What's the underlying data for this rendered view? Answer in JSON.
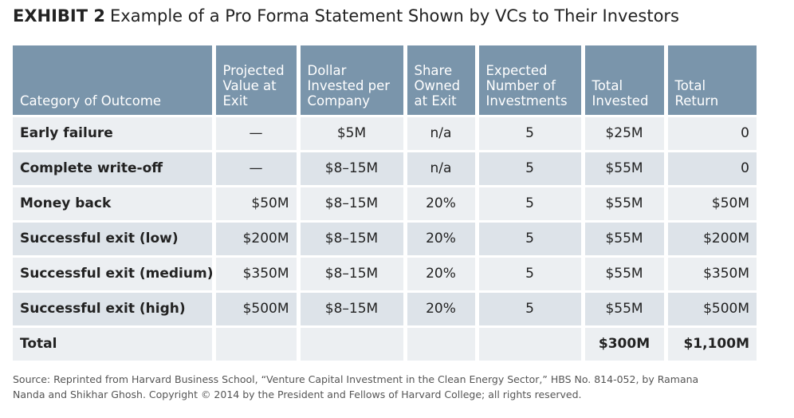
{
  "title": {
    "number": "EXHIBIT 2",
    "text": "Example of a Pro Forma Statement Shown by VCs to Their Investors"
  },
  "table": {
    "headers": [
      "Category of Outcome",
      "Projected Value at Exit",
      "Dollar Invested per Company",
      "Share Owned at Exit",
      "Expected Number of Investments",
      "Total Invested",
      "Total Return"
    ],
    "rows": [
      [
        "Early failure",
        "—",
        "$5M",
        "n/a",
        "5",
        "$25M",
        "0"
      ],
      [
        "Complete write-off",
        "—",
        "$8–15M",
        "n/a",
        "5",
        "$55M",
        "0"
      ],
      [
        "Money back",
        "$50M",
        "$8–15M",
        "20%",
        "5",
        "$55M",
        "$50M"
      ],
      [
        "Successful exit (low)",
        "$200M",
        "$8–15M",
        "20%",
        "5",
        "$55M",
        "$200M"
      ],
      [
        "Successful exit (medium)",
        "$350M",
        "$8–15M",
        "20%",
        "5",
        "$55M",
        "$350M"
      ],
      [
        "Successful exit (high)",
        "$500M",
        "$8–15M",
        "20%",
        "5",
        "$55M",
        "$500M"
      ],
      [
        "Total",
        "",
        "",
        "",
        "",
        "$300M",
        "$1,100M"
      ]
    ]
  },
  "source": "Source: Reprinted from Harvard Business School, “Venture Capital Investment in the Clean Energy Sector,” HBS No. 814-052, by Ramana\nNanda and Shikhar Ghosh. Copyright © 2014 by the President and Fellows of Harvard College; all rights reserved."
}
